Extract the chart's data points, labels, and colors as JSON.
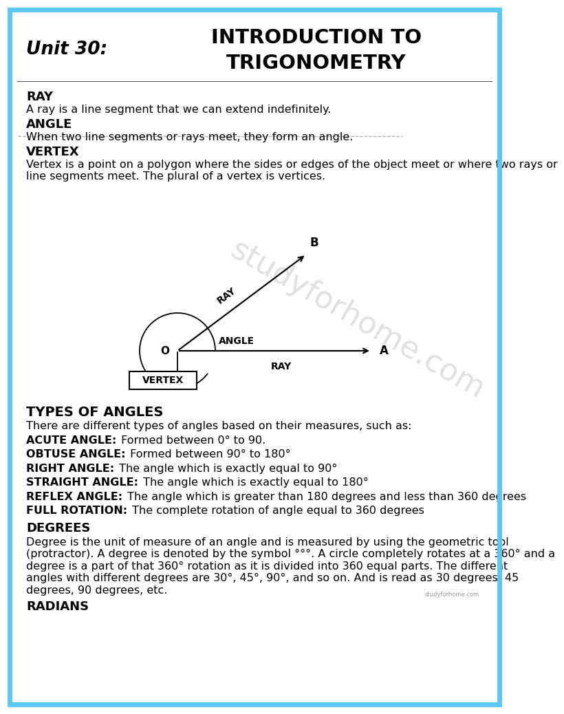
{
  "bg_color": "#ffffff",
  "border_color": "#5bc8f5",
  "title_unit": "Unit 30:",
  "title_intro": "INTRODUCTION TO",
  "title_trig": "TRIGONOMETRY",
  "ray_heading": "RAY",
  "ray_body": "A ray is a line segment that we can extend indefinitely.",
  "angle_heading": "ANGLE",
  "angle_body": "When two line segments or rays meet, they form an angle.",
  "vertex_heading": "VERTEX",
  "vertex_body": "Vertex is a point on a polygon where the sides or edges of the object meet or where two rays or line segments meet. The plural of a vertex is vertices.",
  "types_heading": "TYPES OF ANGLES",
  "types_intro": "There are different types of angles based on their measures, such as:",
  "angle_types": [
    {
      "bold": "ACUTE ANGLE:",
      "text": " Formed between 0° to 90."
    },
    {
      "bold": "OBTUSE ANGLE:",
      "text": " Formed between 90° to 180°"
    },
    {
      "bold": "RIGHT ANGLE:",
      "text": " The angle which is exactly equal to 90°"
    },
    {
      "bold": "STRAIGHT ANGLE:",
      "text": " The angle which is exactly equal to 180°"
    },
    {
      "bold": "REFLEX ANGLE:",
      "text": " The angle which is greater than 180 degrees and less than 360 degrees",
      "wrap": true
    },
    {
      "bold": "FULL ROTATION:",
      "text": " The complete rotation of angle equal to 360 degrees"
    }
  ],
  "degrees_heading": "DEGREES",
  "degrees_body": "Degree is the unit of measure of an angle and is measured by using the geometric tool (protractor). A degree is denoted by the symbol °°°. A circle completely rotates at a 360° and a degree is a part of that 360° rotation as it is divided into 360 equal parts. The different angles with different degrees are 30°, 45°, 90°, and so on. And is read as 30 degrees, 45 degrees, 90 degrees, etc.",
  "radians_heading": "RADIANS",
  "watermark": "studyforhome.com",
  "font_body": 11.5,
  "font_heading": 13,
  "font_title_unit": 19,
  "font_title_main": 21
}
